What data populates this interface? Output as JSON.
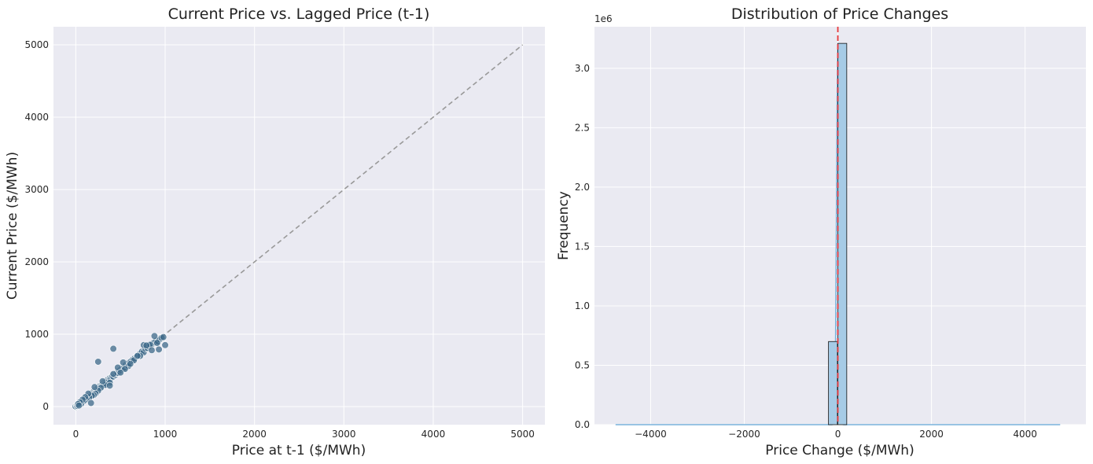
{
  "chart_data": [
    {
      "type": "scatter",
      "title": "Current Price vs. Lagged Price (t-1)",
      "xlabel": "Price at t-1 ($/MWh)",
      "ylabel": "Current Price ($/MWh)",
      "xlim": [
        -250,
        5250
      ],
      "ylim": [
        -250,
        5250
      ],
      "xticks": [
        0,
        1000,
        2000,
        3000,
        4000,
        5000
      ],
      "yticks": [
        0,
        1000,
        2000,
        3000,
        4000,
        5000
      ],
      "grid": true,
      "point_color": "#3e6a8a",
      "reference_line": {
        "from": [
          0,
          0
        ],
        "to": [
          5000,
          5000
        ],
        "style": "dashed",
        "color": "#999999"
      },
      "points": [
        [
          0,
          0
        ],
        [
          2,
          -5
        ],
        [
          5,
          8
        ],
        [
          -3,
          3
        ],
        [
          10,
          12
        ],
        [
          15,
          10
        ],
        [
          20,
          25
        ],
        [
          30,
          28
        ],
        [
          40,
          45
        ],
        [
          50,
          52
        ],
        [
          60,
          55
        ],
        [
          70,
          75
        ],
        [
          80,
          78
        ],
        [
          90,
          95
        ],
        [
          100,
          105
        ],
        [
          110,
          102
        ],
        [
          120,
          128
        ],
        [
          130,
          125
        ],
        [
          140,
          150
        ],
        [
          150,
          145
        ],
        [
          160,
          170
        ],
        [
          170,
          165
        ],
        [
          180,
          190
        ],
        [
          190,
          185
        ],
        [
          200,
          210
        ],
        [
          210,
          200
        ],
        [
          220,
          230
        ],
        [
          230,
          240
        ],
        [
          240,
          235
        ],
        [
          250,
          260
        ],
        [
          260,
          250
        ],
        [
          270,
          285
        ],
        [
          280,
          275
        ],
        [
          290,
          300
        ],
        [
          300,
          310
        ],
        [
          310,
          300
        ],
        [
          320,
          335
        ],
        [
          330,
          325
        ],
        [
          340,
          350
        ],
        [
          350,
          345
        ],
        [
          360,
          375
        ],
        [
          370,
          365
        ],
        [
          380,
          395
        ],
        [
          390,
          385
        ],
        [
          400,
          410
        ],
        [
          410,
          420
        ],
        [
          420,
          415
        ],
        [
          430,
          445
        ],
        [
          440,
          435
        ],
        [
          450,
          460
        ],
        [
          460,
          470
        ],
        [
          470,
          465
        ],
        [
          480,
          495
        ],
        [
          490,
          485
        ],
        [
          500,
          510
        ],
        [
          520,
          530
        ],
        [
          540,
          535
        ],
        [
          560,
          575
        ],
        [
          580,
          570
        ],
        [
          600,
          610
        ],
        [
          620,
          630
        ],
        [
          640,
          650
        ],
        [
          660,
          670
        ],
        [
          680,
          690
        ],
        [
          700,
          710
        ],
        [
          720,
          730
        ],
        [
          740,
          760
        ],
        [
          760,
          750
        ],
        [
          780,
          800
        ],
        [
          800,
          810
        ],
        [
          820,
          830
        ],
        [
          840,
          850
        ],
        [
          860,
          870
        ],
        [
          880,
          890
        ],
        [
          900,
          910
        ],
        [
          920,
          900
        ],
        [
          940,
          930
        ],
        [
          960,
          950
        ],
        [
          980,
          960
        ],
        [
          1000,
          850
        ],
        [
          880,
          975
        ],
        [
          830,
          855
        ],
        [
          760,
          850
        ],
        [
          790,
          845
        ],
        [
          910,
          880
        ],
        [
          930,
          790
        ],
        [
          850,
          780
        ],
        [
          720,
          700
        ],
        [
          650,
          640
        ],
        [
          590,
          560
        ],
        [
          550,
          520
        ],
        [
          470,
          540
        ],
        [
          420,
          450
        ],
        [
          380,
          330
        ],
        [
          330,
          300
        ],
        [
          280,
          260
        ],
        [
          250,
          220
        ],
        [
          220,
          180
        ],
        [
          200,
          160
        ],
        [
          180,
          150
        ],
        [
          150,
          130
        ],
        [
          120,
          100
        ],
        [
          90,
          80
        ],
        [
          60,
          40
        ],
        [
          170,
          50
        ],
        [
          250,
          620
        ],
        [
          420,
          800
        ],
        [
          530,
          610
        ],
        [
          380,
          290
        ],
        [
          300,
          350
        ],
        [
          210,
          270
        ],
        [
          140,
          180
        ],
        [
          105,
          130
        ],
        [
          75,
          95
        ],
        [
          45,
          60
        ],
        [
          25,
          35
        ],
        [
          35,
          15
        ],
        [
          500,
          470
        ],
        [
          610,
          590
        ],
        [
          690,
          700
        ]
      ]
    },
    {
      "type": "bar",
      "title": "Distribution of Price Changes",
      "xlabel": "Price Change ($/MWh)",
      "ylabel": "Frequency",
      "y_offset_label": "1e6",
      "xlim": [
        -5200,
        5300
      ],
      "ylim": [
        0,
        3350000
      ],
      "xticks": [
        -4000,
        -2000,
        0,
        2000,
        4000
      ],
      "yticks": [
        0,
        500000,
        1000000,
        1500000,
        2000000,
        2500000,
        3000000
      ],
      "ytick_labels": [
        "0.0",
        "0.5",
        "1.0",
        "1.5",
        "2.0",
        "2.5",
        "3.0"
      ],
      "grid": true,
      "bar_color": "#a6cbe6",
      "kde_color": "#7ab4dc",
      "mean_line": {
        "x": 0,
        "style": "dashed",
        "color": "#e8383b"
      },
      "bins": [
        {
          "x0": -200,
          "x1": -10,
          "count": 700000
        },
        {
          "x0": -10,
          "x1": 0,
          "count": 0
        },
        {
          "x0": 0,
          "x1": 190,
          "count": 3210000
        }
      ],
      "kde_range": [
        -4750,
        4750
      ]
    }
  ]
}
